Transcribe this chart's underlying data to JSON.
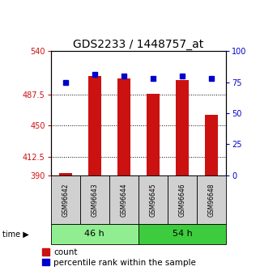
{
  "title": "GDS2233 / 1448757_at",
  "samples": [
    "GSM96642",
    "GSM96643",
    "GSM96644",
    "GSM96645",
    "GSM96646",
    "GSM96648"
  ],
  "groups": [
    {
      "label": "46 h",
      "indices": [
        0,
        1,
        2
      ],
      "color": "#90EE90"
    },
    {
      "label": "54 h",
      "indices": [
        3,
        4,
        5
      ],
      "color": "#3DCC3D"
    }
  ],
  "counts": [
    393,
    510,
    507,
    488,
    505,
    463
  ],
  "percentile_ranks": [
    75,
    81,
    80,
    78,
    80,
    78
  ],
  "ylim_left": [
    390,
    540
  ],
  "ylim_right": [
    0,
    100
  ],
  "yticks_left": [
    390,
    412.5,
    450,
    487.5,
    540
  ],
  "ytick_labels_left": [
    "390",
    "412.5",
    "450",
    "487.5",
    "540"
  ],
  "yticks_right": [
    0,
    25,
    50,
    75,
    100
  ],
  "ytick_labels_right": [
    "0",
    "25",
    "50",
    "75",
    "100"
  ],
  "hlines": [
    412.5,
    450,
    487.5
  ],
  "bar_color": "#CC1111",
  "dot_color": "#0000CC",
  "bar_width": 0.45,
  "left_label_color": "#CC1111",
  "right_label_color": "#0000CC",
  "bg_color": "#ffffff",
  "plot_bg": "#ffffff",
  "title_fontsize": 10,
  "tick_fontsize": 7,
  "legend_fontsize": 7.5,
  "sample_label_fontsize": 5.5,
  "group_label_fontsize": 8
}
